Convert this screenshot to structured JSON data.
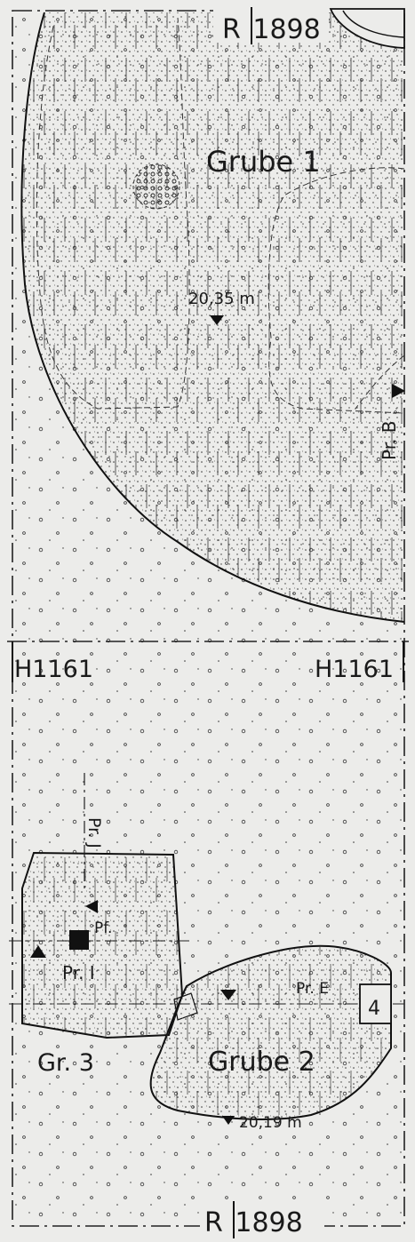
{
  "plan": {
    "grid_top": "R 1898",
    "grid_bottom": "R 1898",
    "grid_left": "H1161",
    "grid_right": "H1161",
    "pits": [
      "Grube 1",
      "Gr. 3",
      "Grube 2"
    ],
    "heights": [
      "20,35 m",
      "20,19 m"
    ],
    "profiles": [
      "Pr. B",
      "Pr. J",
      "Pr. I",
      "Pr. E"
    ],
    "post": "Pf.",
    "box": "4"
  }
}
